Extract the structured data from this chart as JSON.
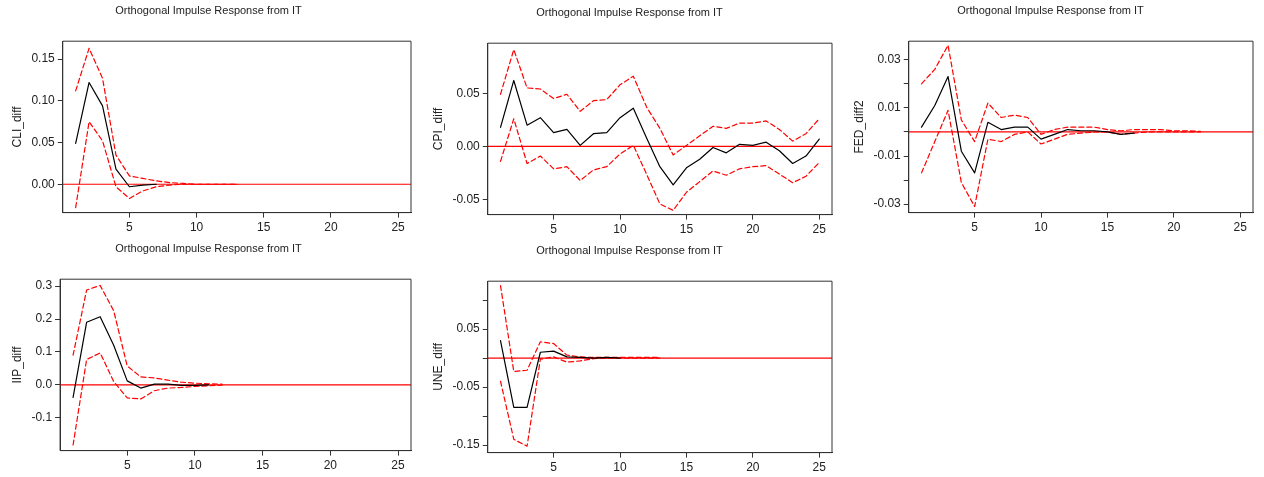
{
  "chart_data": [
    {
      "type": "line",
      "title": "Orthogonal Impulse Response from IT",
      "ylabel": "CLI_diff",
      "x": [
        1,
        2,
        3,
        4,
        5,
        6,
        7,
        8,
        9,
        10,
        11,
        12,
        13
      ],
      "xlim": [
        0.04,
        25.96
      ],
      "xticks": [
        5,
        10,
        15,
        20,
        25
      ],
      "ylim": [
        -0.034,
        0.1715
      ],
      "yticks": [
        {
          "value": 0,
          "label": "0.00"
        },
        0.05,
        {
          "value": 0.1,
          "label": "0.10"
        },
        0.15
      ],
      "grid": false,
      "legend": false,
      "marker": "none",
      "ref_lines": [
        {
          "axis": "y",
          "value": 0,
          "color": "#ff0000"
        }
      ],
      "series": [
        {
          "color": "#000000",
          "line_style": "solid",
          "values": [
            0.049,
            0.122,
            0.094,
            0.018,
            -0.003,
            -0.001,
            0,
            null,
            null,
            null,
            null,
            null,
            null
          ]
        },
        {
          "color": "#ff0000",
          "line_style": "dashed",
          "values": [
            0.112,
            0.163,
            0.127,
            0.035,
            0.01,
            0.007,
            0.004,
            0.002,
            0.001,
            0,
            0,
            0,
            0
          ]
        },
        {
          "color": "#ff0000",
          "line_style": "dashed",
          "values": [
            -0.028,
            0.075,
            0.052,
            -0.003,
            -0.017,
            -0.008,
            -0.003,
            -0.001,
            0,
            0,
            0,
            0,
            0
          ]
        }
      ]
    },
    {
      "type": "line",
      "title": "Orthogonal Impulse Response from IT",
      "ylabel": "CPI_diff",
      "x": [
        1,
        2,
        3,
        4,
        5,
        6,
        7,
        8,
        9,
        10,
        11,
        12,
        13,
        14,
        15,
        16,
        17,
        18,
        19,
        20,
        21,
        22,
        23,
        24,
        25
      ],
      "xlim": [
        0.04,
        25.96
      ],
      "xticks": [
        5,
        10,
        15,
        20,
        25
      ],
      "ylim": [
        -0.064,
        0.097
      ],
      "yticks": [
        -0.05,
        {
          "value": 0,
          "label": "0.00"
        },
        0.05
      ],
      "grid": false,
      "legend": false,
      "marker": "none",
      "ref_lines": [
        {
          "axis": "y",
          "value": 0,
          "color": "#ff0000"
        }
      ],
      "series": [
        {
          "color": "#000000",
          "line_style": "solid",
          "values": [
            0.018,
            0.062,
            0.02,
            0.027,
            0.013,
            0.016,
            0.001,
            0.012,
            0.013,
            0.027,
            0.036,
            0.008,
            -0.019,
            -0.036,
            -0.02,
            -0.012,
            -0.001,
            -0.006,
            0.002,
            0.001,
            0.004,
            -0.004,
            -0.016,
            -0.009,
            0.007
          ]
        },
        {
          "color": "#ff0000",
          "line_style": "dashed",
          "values": [
            0.049,
            0.091,
            0.055,
            0.054,
            0.045,
            0.049,
            0.033,
            0.043,
            0.044,
            0.058,
            0.066,
            0.037,
            0.017,
            -0.008,
            0.001,
            0.01,
            0.019,
            0.017,
            0.022,
            0.022,
            0.024,
            0.016,
            0.005,
            0.012,
            0.026
          ]
        },
        {
          "color": "#ff0000",
          "line_style": "dashed",
          "values": [
            -0.014,
            0.026,
            -0.016,
            -0.009,
            -0.021,
            -0.019,
            -0.032,
            -0.022,
            -0.019,
            -0.007,
            0.001,
            -0.026,
            -0.054,
            -0.06,
            -0.043,
            -0.033,
            -0.023,
            -0.027,
            -0.021,
            -0.019,
            -0.018,
            -0.026,
            -0.034,
            -0.028,
            -0.015
          ]
        }
      ]
    },
    {
      "type": "line",
      "title": "Orthogonal Impulse Response from IT",
      "ylabel": "FED_diff2",
      "x": [
        1,
        2,
        3,
        4,
        5,
        6,
        7,
        8,
        9,
        10,
        11,
        12,
        13,
        14,
        15,
        16,
        17,
        18,
        19,
        20,
        21,
        22
      ],
      "xlim": [
        0.04,
        25.96
      ],
      "xticks": [
        5,
        10,
        15,
        20,
        25
      ],
      "ylim": [
        -0.0335,
        0.0377
      ],
      "yticks": [
        -0.03,
        {
          "value": -0.02,
          "label": null
        },
        -0.01,
        {
          "value": 0,
          "label": null
        },
        0.01,
        {
          "value": 0.02,
          "label": null
        },
        0.03
      ],
      "grid": false,
      "legend": false,
      "marker": "none",
      "ref_lines": [
        {
          "axis": "y",
          "value": 0,
          "color": "#ff0000"
        }
      ],
      "series": [
        {
          "color": "#000000",
          "line_style": "solid",
          "values": [
            0.002,
            0.011,
            0.023,
            -0.008,
            -0.017,
            0.004,
            0.001,
            0.002,
            0.002,
            -0.003,
            -0.001,
            0.001,
            0.0005,
            0.0005,
            0,
            -0.001,
            -0.0005,
            null,
            null,
            null,
            null,
            null
          ]
        },
        {
          "color": "#ff0000",
          "line_style": "dashed",
          "values": [
            0.02,
            0.026,
            0.036,
            0.005,
            -0.004,
            0.012,
            0.006,
            0.007,
            0.006,
            -0.001,
            0.001,
            0.002,
            0.002,
            0.002,
            0.001,
            0.0005,
            0.001,
            0.001,
            0.001,
            0.0005,
            0.0005,
            0.0002
          ]
        },
        {
          "color": "#ff0000",
          "line_style": "dashed",
          "values": [
            -0.017,
            -0.004,
            0.009,
            -0.021,
            -0.031,
            -0.003,
            -0.004,
            -0.001,
            0,
            -0.005,
            -0.003,
            -0.001,
            -0.0005,
            0,
            0,
            -0.001,
            -0.0005,
            0,
            0,
            0,
            0,
            0
          ]
        }
      ]
    },
    {
      "type": "line",
      "title": "Orthogonal Impulse Response from IT",
      "ylabel": "IIP_diff",
      "x": [
        1,
        2,
        3,
        4,
        5,
        6,
        7,
        8,
        9,
        10,
        11,
        12
      ],
      "xlim": [
        0.04,
        25.96
      ],
      "xticks": [
        5,
        10,
        15,
        20,
        25
      ],
      "ylim": [
        -0.2,
        0.321
      ],
      "yticks": [
        -0.1,
        {
          "value": 0,
          "label": "0.0"
        },
        0.1,
        0.2,
        0.3
      ],
      "grid": false,
      "legend": false,
      "marker": "none",
      "ref_lines": [
        {
          "axis": "y",
          "value": 0,
          "color": "#ff0000"
        }
      ],
      "series": [
        {
          "color": "#000000",
          "line_style": "solid",
          "values": [
            -0.038,
            0.19,
            0.207,
            0.12,
            0.012,
            -0.01,
            0.002,
            0.002,
            -0.002,
            -0.002,
            0,
            null
          ]
        },
        {
          "color": "#ff0000",
          "line_style": "dashed",
          "values": [
            0.09,
            0.288,
            0.302,
            0.225,
            0.057,
            0.024,
            0.021,
            0.014,
            0.008,
            0.005,
            0.003,
            0.002
          ]
        },
        {
          "color": "#ff0000",
          "line_style": "dashed",
          "values": [
            -0.183,
            0.077,
            0.097,
            0.01,
            -0.04,
            -0.043,
            -0.018,
            -0.01,
            -0.008,
            -0.005,
            -0.003,
            -0.001
          ]
        }
      ]
    },
    {
      "type": "line",
      "title": "Orthogonal Impulse Response from IT",
      "ylabel": "UNE_diff",
      "x": [
        1,
        2,
        3,
        4,
        5,
        6,
        7,
        8,
        9,
        10,
        11,
        12,
        13
      ],
      "xlim": [
        0.04,
        25.96
      ],
      "xticks": [
        5,
        10,
        15,
        20,
        25
      ],
      "ylim": [
        -0.163,
        0.1325
      ],
      "yticks": [
        -0.15,
        {
          "value": -0.1,
          "label": null
        },
        -0.05,
        {
          "value": 0,
          "label": null
        },
        0.05,
        {
          "value": 0.1,
          "label": null
        }
      ],
      "grid": false,
      "legend": false,
      "marker": "none",
      "ref_lines": [
        {
          "axis": "y",
          "value": 0,
          "color": "#ff0000"
        }
      ],
      "series": [
        {
          "color": "#000000",
          "line_style": "solid",
          "values": [
            0.03,
            -0.085,
            -0.085,
            0.01,
            0.012,
            0.002,
            0.001,
            0,
            0.001,
            0,
            null,
            null,
            null
          ]
        },
        {
          "color": "#ff0000",
          "line_style": "dashed",
          "values": [
            0.125,
            -0.023,
            -0.021,
            0.028,
            0.025,
            0.005,
            0.002,
            0.001,
            0.001,
            0.001,
            0.001,
            0.001,
            0.001
          ]
        },
        {
          "color": "#ff0000",
          "line_style": "dashed",
          "values": [
            -0.04,
            -0.14,
            -0.152,
            -0.002,
            0.002,
            -0.007,
            -0.005,
            -0.001,
            0,
            0,
            0,
            0,
            0
          ]
        }
      ]
    }
  ]
}
